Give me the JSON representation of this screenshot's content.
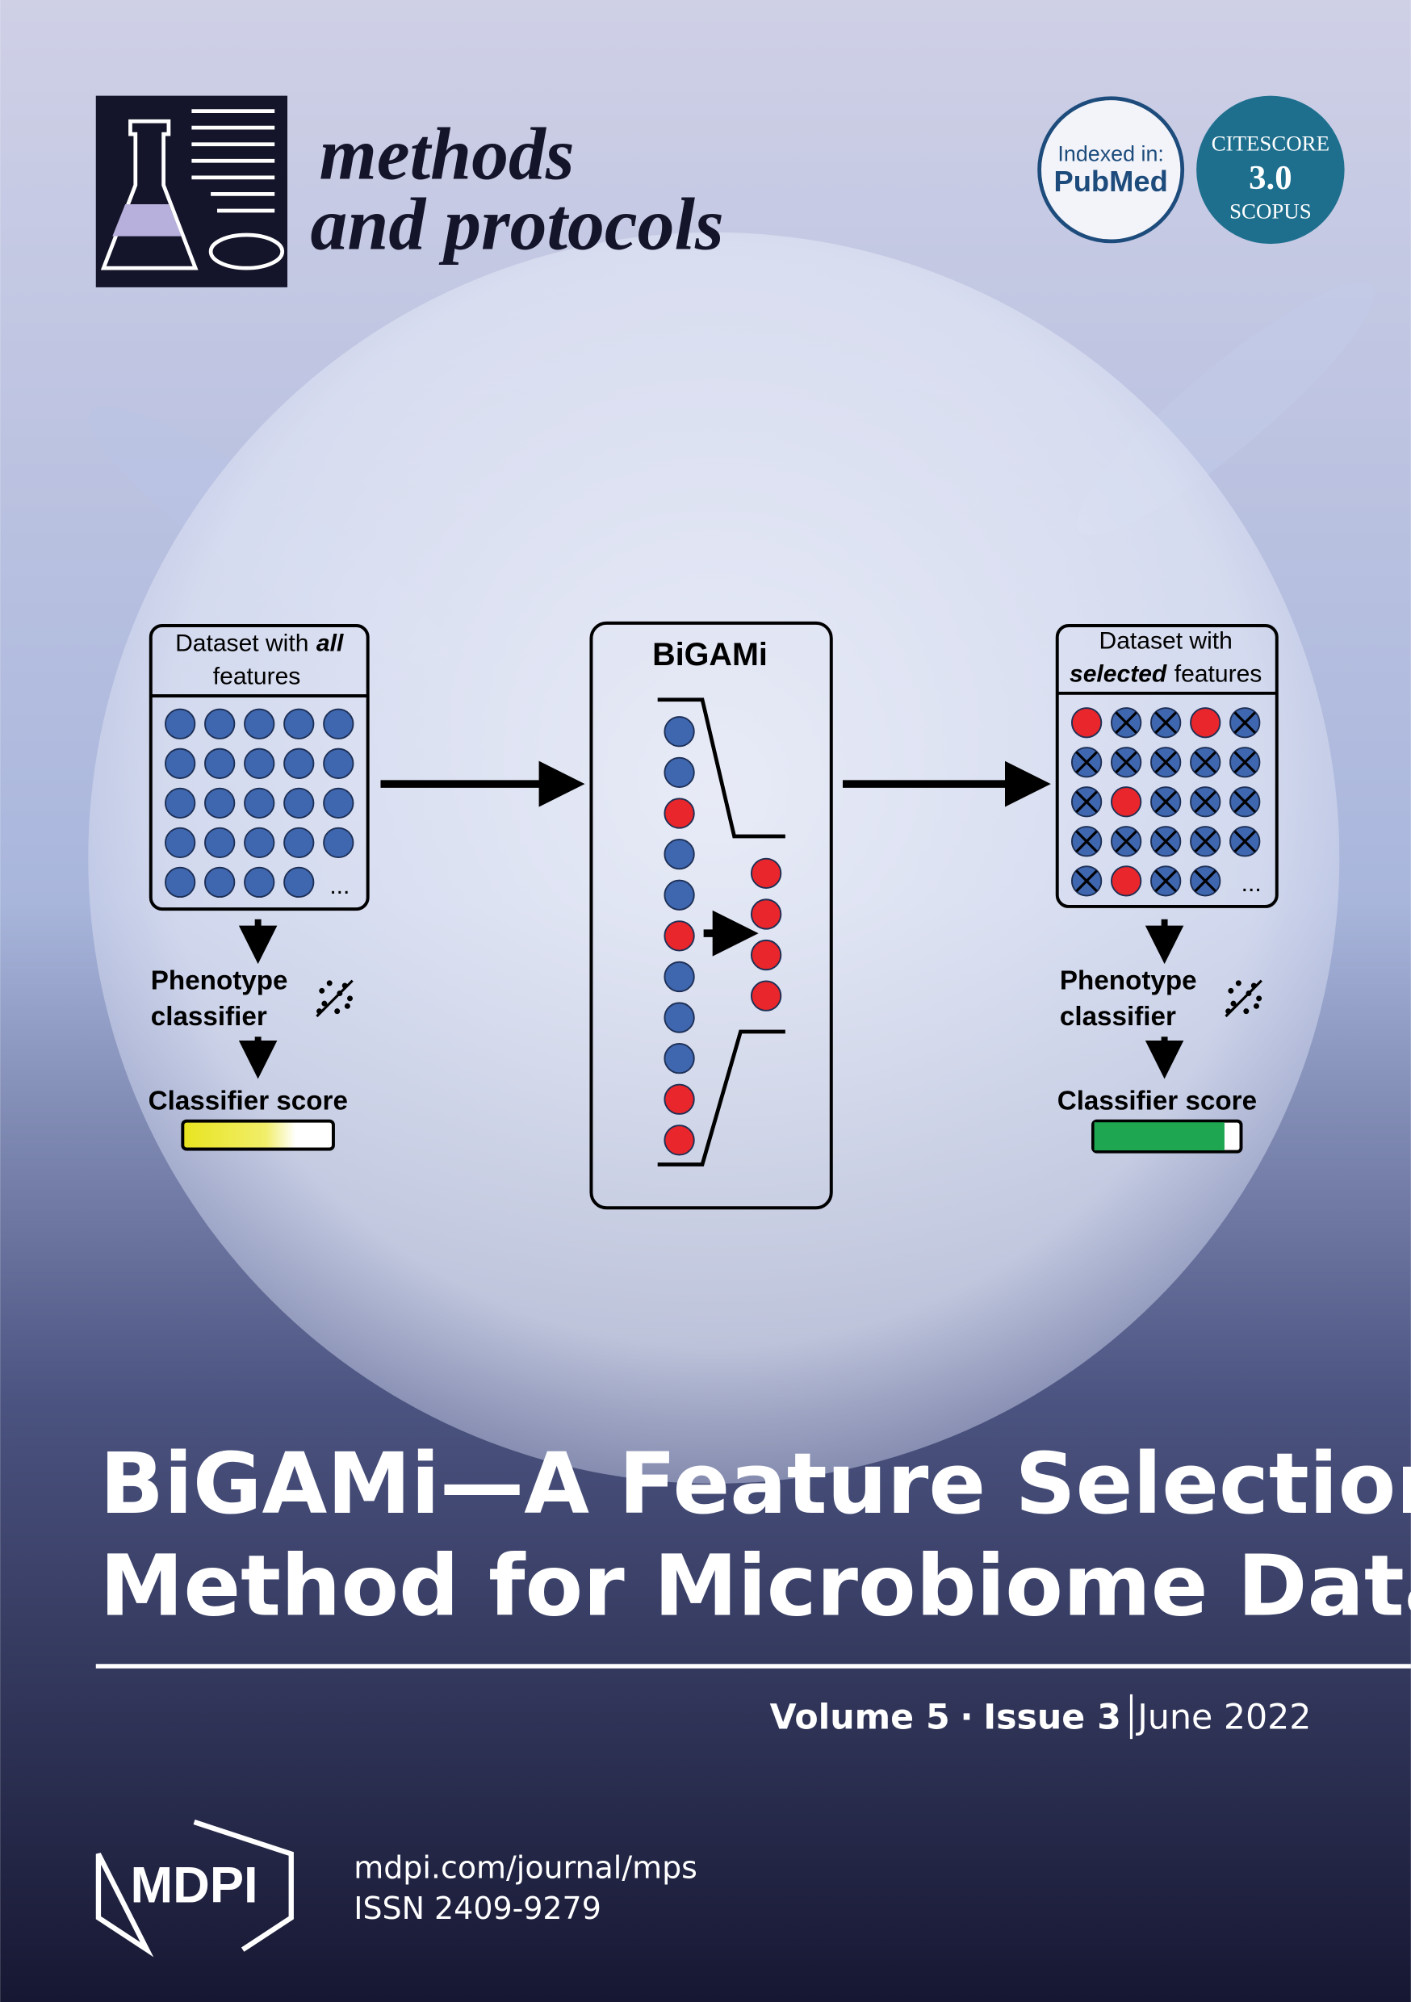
{
  "journal": {
    "name_line1": "methods",
    "name_line2": "and protocols"
  },
  "badges": {
    "pubmed": {
      "label": "Indexed in:",
      "name": "PubMed"
    },
    "citescore": {
      "label": "CITESCORE",
      "value": "3.0",
      "source": "SCOPUS"
    }
  },
  "figure": {
    "left": {
      "title_start": "Dataset with",
      "title_emphasis": "all",
      "title_line2": "features",
      "more": "...",
      "classifier_line1": "Phenotype",
      "classifier_line2": "classifier",
      "score_label": "Classifier score"
    },
    "middle": {
      "title": "BiGAMi"
    },
    "right": {
      "title_line1": "Dataset with",
      "title_emphasis": "selected",
      "title_end": "features",
      "more": "...",
      "classifier_line1": "Phenotype",
      "classifier_line2": "classifier",
      "score_label": "Classifier score"
    }
  },
  "article": {
    "title_lines": [
      "BiGAMi—A Feature Selection",
      "Method for Microbiome Data"
    ]
  },
  "issue": {
    "volume": "Volume 5",
    "separator": "·",
    "issue": "Issue 3",
    "date": "June 2022"
  },
  "publisher": {
    "name": "MDPI",
    "url": "mdpi.com/journal/mps",
    "issn": "ISSN 2409-9279"
  }
}
